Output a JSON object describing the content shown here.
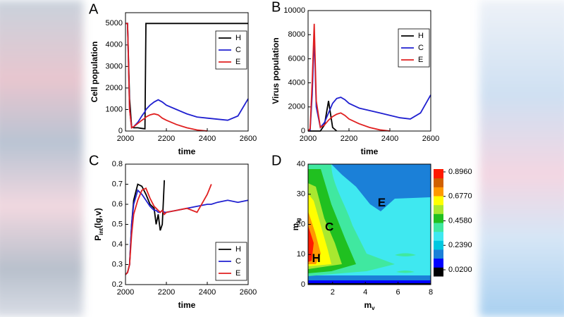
{
  "chart_data": [
    {
      "type": "line",
      "label": "A",
      "xlabel": "time",
      "ylabel": "Cell population",
      "x": [
        2000,
        2010,
        2020,
        2030,
        2040,
        2060,
        2080,
        2095,
        2100,
        2120,
        2140,
        2160,
        2180,
        2200,
        2250,
        2300,
        2350,
        2400,
        2450,
        2500,
        2550,
        2600
      ],
      "series": [
        {
          "name": "H",
          "color": "#000000",
          "values": [
            5000,
            5000,
            1500,
            200,
            150,
            150,
            120,
            100,
            5000,
            5000,
            5000,
            5000,
            5000,
            5000,
            5000,
            5000,
            5000,
            5000,
            5000,
            5000,
            5000,
            5000
          ]
        },
        {
          "name": "C",
          "color": "#2020d0",
          "values": [
            5000,
            5000,
            1000,
            150,
            200,
            400,
            700,
            900,
            1000,
            1200,
            1350,
            1450,
            1350,
            1200,
            1000,
            800,
            650,
            600,
            550,
            500,
            700,
            1500
          ]
        },
        {
          "name": "E",
          "color": "#e02020",
          "values": [
            5000,
            5000,
            1000,
            150,
            200,
            350,
            500,
            600,
            650,
            750,
            800,
            750,
            600,
            500,
            300,
            150,
            50,
            0,
            null,
            null,
            null,
            null
          ]
        }
      ],
      "xlim": [
        2000,
        2600
      ],
      "xticks": [
        2000,
        2200,
        2400,
        2600
      ],
      "ylim": [
        0,
        5500
      ],
      "yticks": [
        0,
        1000,
        2000,
        3000,
        4000,
        5000
      ],
      "legend": "upper right"
    },
    {
      "type": "line",
      "label": "B",
      "xlabel": "time",
      "ylabel": "Virus population",
      "x": [
        2000,
        2010,
        2020,
        2030,
        2040,
        2060,
        2080,
        2100,
        2120,
        2140,
        2160,
        2180,
        2200,
        2250,
        2300,
        2350,
        2400,
        2450,
        2500,
        2550,
        2600
      ],
      "series": [
        {
          "name": "H",
          "color": "#000000",
          "values": [
            0,
            0,
            0,
            0,
            0,
            0,
            500,
            2500,
            300,
            0,
            null,
            null,
            null,
            null,
            null,
            null,
            null,
            null,
            null,
            null,
            null
          ]
        },
        {
          "name": "C",
          "color": "#2020d0",
          "values": [
            0,
            100,
            3000,
            8000,
            2000,
            300,
            700,
            1500,
            2300,
            2700,
            2800,
            2600,
            2300,
            1900,
            1700,
            1500,
            1300,
            1100,
            1000,
            1500,
            3000
          ]
        },
        {
          "name": "E",
          "color": "#e02020",
          "values": [
            0,
            200,
            4000,
            8900,
            2500,
            300,
            500,
            900,
            1200,
            1400,
            1500,
            1300,
            1000,
            600,
            300,
            100,
            0,
            null,
            null,
            null,
            null
          ]
        }
      ],
      "xlim": [
        2000,
        2600
      ],
      "xticks": [
        2000,
        2200,
        2400,
        2600
      ],
      "ylim": [
        0,
        10000
      ],
      "yticks": [
        0,
        2000,
        4000,
        6000,
        8000,
        10000
      ],
      "legend": "upper right"
    },
    {
      "type": "line",
      "label": "C",
      "xlabel": "time",
      "ylabel": "P",
      "ylabel_sub": "int",
      "ylabel_rest": "(lg,v)",
      "x": [
        2000,
        2010,
        2020,
        2030,
        2040,
        2060,
        2080,
        2100,
        2120,
        2140,
        2150,
        2160,
        2170,
        2180,
        2190,
        2200,
        2250,
        2300,
        2350,
        2400,
        2420,
        2450,
        2500,
        2550,
        2600
      ],
      "series": [
        {
          "name": "H",
          "color": "#000000",
          "values": [
            0.25,
            0.26,
            0.3,
            0.5,
            0.62,
            0.7,
            0.69,
            0.65,
            0.6,
            0.58,
            0.5,
            0.55,
            0.47,
            0.5,
            0.72,
            null,
            null,
            null,
            null,
            null,
            null,
            null,
            null,
            null,
            null
          ]
        },
        {
          "name": "C",
          "color": "#2020d0",
          "values": [
            0.25,
            0.26,
            0.3,
            0.5,
            0.6,
            0.67,
            0.65,
            0.62,
            0.59,
            0.57,
            0.57,
            0.56,
            0.56,
            0.57,
            0.56,
            0.56,
            0.57,
            0.58,
            0.59,
            0.6,
            0.6,
            0.61,
            0.62,
            0.61,
            0.62
          ]
        },
        {
          "name": "E",
          "color": "#e02020",
          "values": [
            0.25,
            0.26,
            0.3,
            0.45,
            0.55,
            0.62,
            0.67,
            0.68,
            0.63,
            0.59,
            0.58,
            0.57,
            0.56,
            0.57,
            0.55,
            0.56,
            0.57,
            0.58,
            0.56,
            0.65,
            0.7,
            null,
            null,
            null,
            null
          ]
        }
      ],
      "xlim": [
        2000,
        2600
      ],
      "xticks": [
        2000,
        2200,
        2400,
        2600
      ],
      "ylim": [
        0.2,
        0.8
      ],
      "yticks": [
        0.2,
        0.3,
        0.4,
        0.5,
        0.6,
        0.7,
        0.8
      ],
      "legend": "lower right"
    },
    {
      "type": "contour",
      "label": "D",
      "xlabel": "m",
      "xlabel_sub": "v",
      "ylabel": "m",
      "ylabel_sub": "lg",
      "xlim": [
        0.5,
        8
      ],
      "xticks": [
        2,
        4,
        6,
        8
      ],
      "ylim": [
        0,
        40
      ],
      "yticks": [
        0,
        10,
        20,
        30,
        40
      ],
      "levels": [
        {
          "value": 0.02,
          "label": "0.0200"
        },
        {
          "value": 0.239,
          "label": "0.2390"
        },
        {
          "value": 0.458,
          "label": "0.4580"
        },
        {
          "value": 0.677,
          "label": "0.6770"
        },
        {
          "value": 0.896,
          "label": "0.8960"
        }
      ],
      "colors": [
        "#000000",
        "#0000ff",
        "#1b80d8",
        "#00c8e0",
        "#3fe8f0",
        "#40e8a0",
        "#20c020",
        "#a8e830",
        "#ffff00",
        "#ff9900",
        "#d06000",
        "#ff1a00"
      ],
      "annotations": [
        {
          "text": "H",
          "x": 1.0,
          "y": 8.5
        },
        {
          "text": "C",
          "x": 1.8,
          "y": 19
        },
        {
          "text": "E",
          "x": 5.0,
          "y": 27
        }
      ]
    }
  ]
}
